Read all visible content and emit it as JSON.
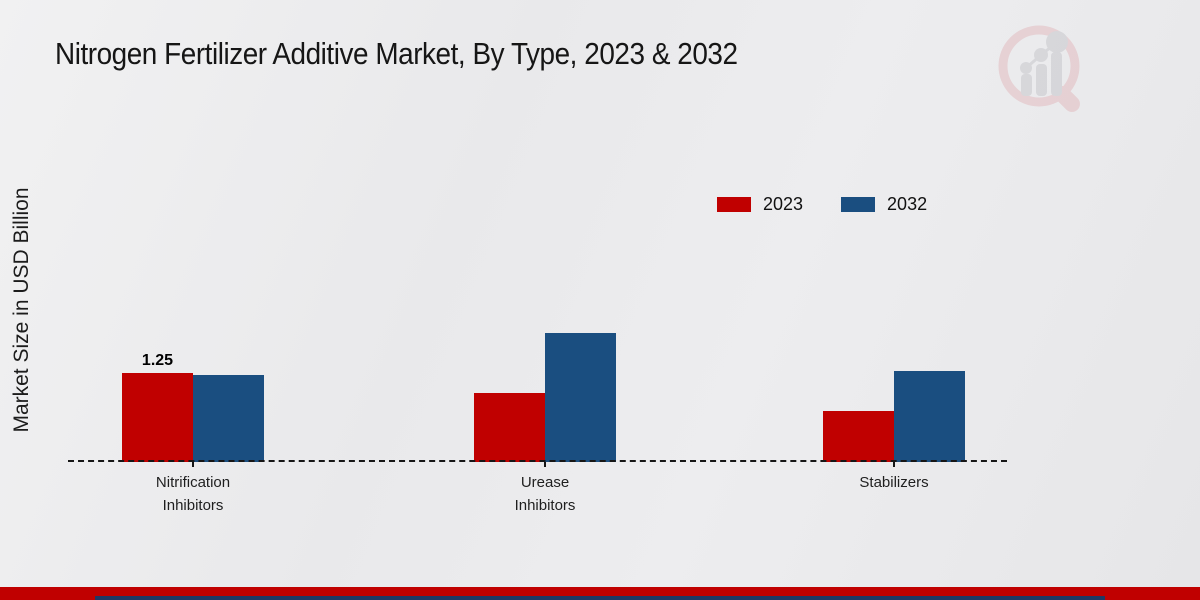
{
  "title": "Nitrogen Fertilizer Additive Market, By Type, 2023 & 2032",
  "chart_data": {
    "type": "bar",
    "title": "Nitrogen Fertilizer Additive Market, By Type, 2023 & 2032",
    "xlabel": "",
    "ylabel": "Market Size in USD Billion",
    "categories": [
      "Nitrification Inhibitors",
      "Urease Inhibitors",
      "Stabilizers"
    ],
    "category_label_lines": [
      "Nitrification\nInhibitors",
      "Urease\nInhibitors",
      "Stabilizers"
    ],
    "series": [
      {
        "name": "2023",
        "color": "#c00000",
        "values": [
          1.25,
          0.97,
          0.72
        ]
      },
      {
        "name": "2032",
        "color": "#1a4e80",
        "values": [
          1.22,
          1.81,
          1.28
        ]
      }
    ],
    "value_labels": [
      {
        "series_index": 0,
        "category_index": 0,
        "text": "1.25"
      }
    ],
    "legend_position": "top-right",
    "axes": {
      "y_ticks_visible": false,
      "gridlines": false,
      "baseline_style": "dashed",
      "baseline_color": "#161616"
    },
    "ylim": [
      0,
      2
    ]
  },
  "legend": {
    "items": [
      {
        "label": "2023",
        "color": "#c00000"
      },
      {
        "label": "2032",
        "color": "#1a4e80"
      }
    ]
  },
  "footer": {
    "stripe_color": "#c00000",
    "bar_color": "#1f3864"
  }
}
